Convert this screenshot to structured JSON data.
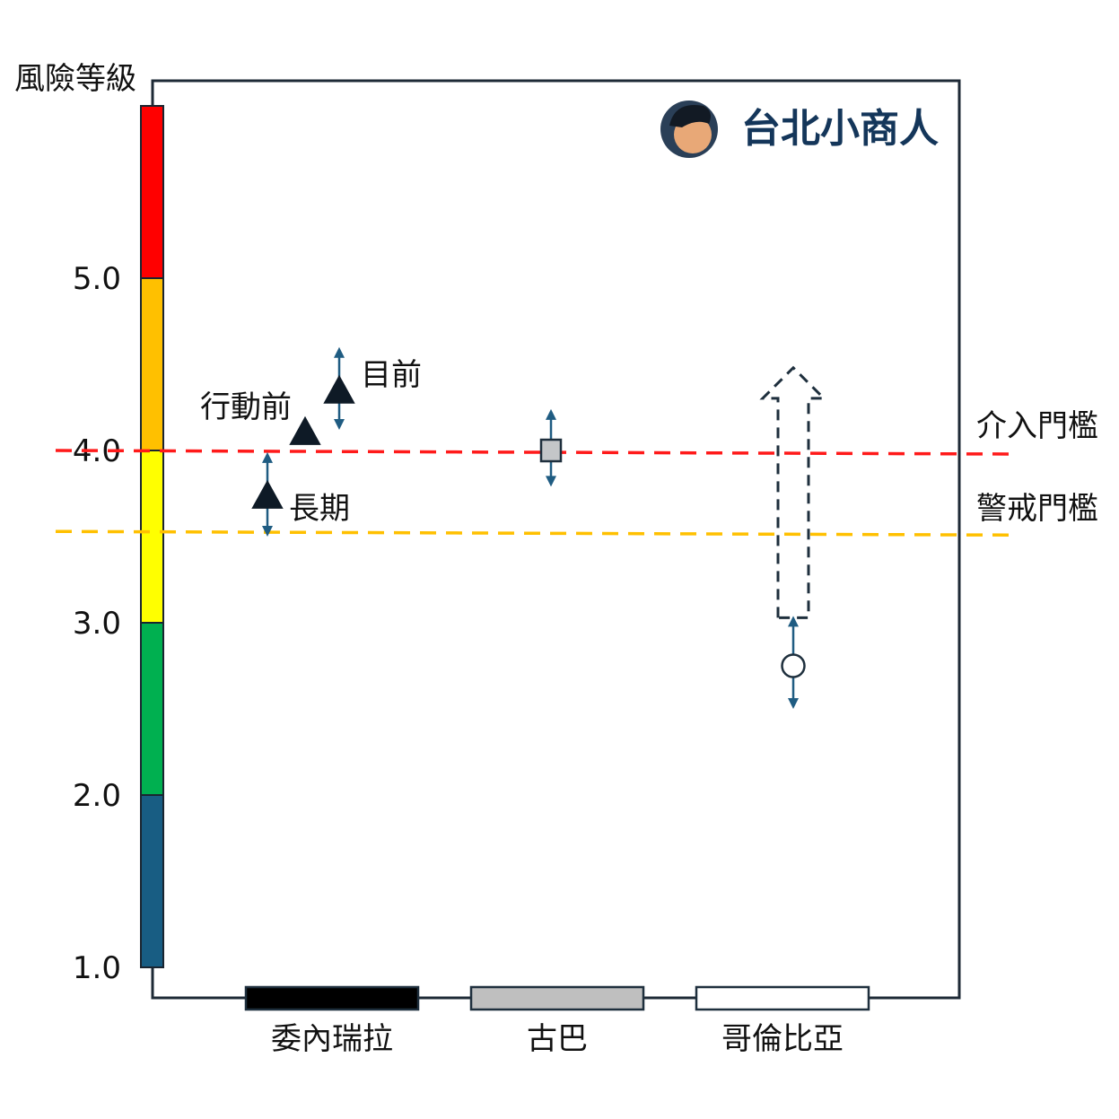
{
  "brand": {
    "name": "台北小商人",
    "color": "#14365a"
  },
  "chart_data": {
    "type": "scatter",
    "ylabel": "風險等級",
    "ylim": [
      1.0,
      6.0
    ],
    "yticks": [
      "1.0",
      "2.0",
      "3.0",
      "4.0",
      "5.0"
    ],
    "risk_bands": [
      {
        "from": 1.0,
        "to": 2.0,
        "color": "#185d83"
      },
      {
        "from": 2.0,
        "to": 3.0,
        "color": "#00b050"
      },
      {
        "from": 3.0,
        "to": 4.0,
        "color": "#ffff00"
      },
      {
        "from": 4.0,
        "to": 5.0,
        "color": "#ffc000"
      },
      {
        "from": 5.0,
        "to": 6.0,
        "color": "#ff0000"
      }
    ],
    "categories": [
      {
        "name": "委內瑞拉",
        "fill": "#000000"
      },
      {
        "name": "古巴",
        "fill": "#bfbfbf"
      },
      {
        "name": "哥倫比亞",
        "fill": "#ffffff"
      }
    ],
    "thresholds": [
      {
        "label": "介入門檻",
        "value": 4.0,
        "color": "#ff1a1a"
      },
      {
        "label": "警戒門檻",
        "value": 3.53,
        "color": "#ffc000"
      }
    ],
    "points": [
      {
        "category": "委內瑞拉",
        "label": "行動前",
        "value": 4.11,
        "marker": "triangle",
        "range": null
      },
      {
        "category": "委內瑞拉",
        "label": "目前",
        "value": 4.35,
        "marker": "triangle",
        "range": [
          4.12,
          4.6
        ]
      },
      {
        "category": "委內瑞拉",
        "label": "長期",
        "value": 3.74,
        "marker": "triangle",
        "range": [
          3.5,
          3.99
        ]
      },
      {
        "category": "古巴",
        "label": "",
        "value": 4.0,
        "marker": "square",
        "range": [
          3.79,
          4.24
        ]
      },
      {
        "category": "哥倫比亞",
        "label": "",
        "value": 2.75,
        "marker": "circle",
        "range": [
          2.5,
          3.04
        ]
      }
    ],
    "arrows": [
      {
        "category": "哥倫比亞",
        "from": 3.04,
        "to": 4.48,
        "style": "dashed"
      }
    ]
  }
}
